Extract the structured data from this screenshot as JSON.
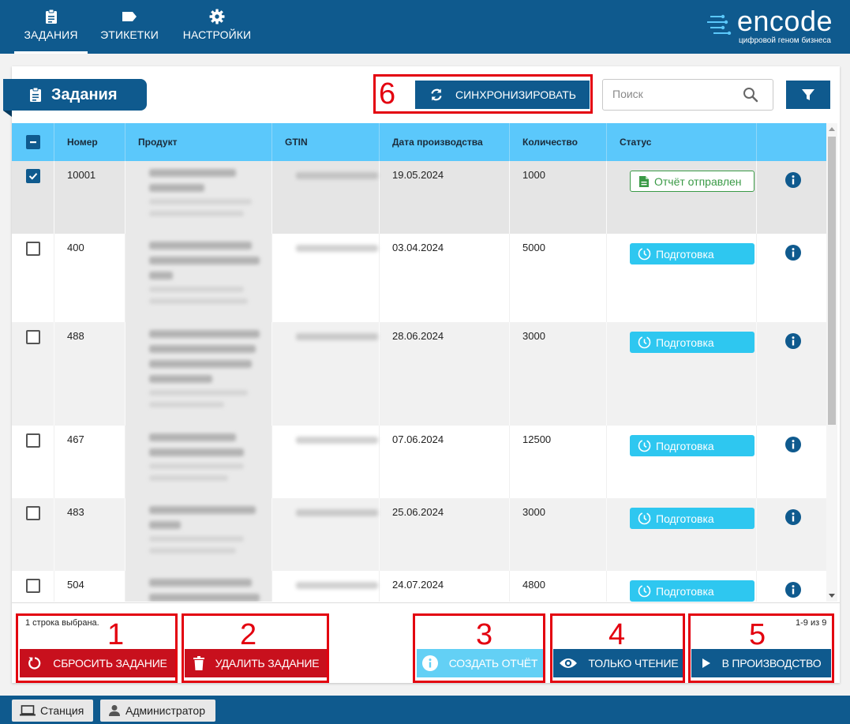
{
  "nav": {
    "items": [
      {
        "label": "ЗАДАНИЯ",
        "icon": "clipboard-icon",
        "active": true
      },
      {
        "label": "ЭТИКЕТКИ",
        "icon": "tag-icon",
        "active": false
      },
      {
        "label": "НАСТРОЙКИ",
        "icon": "gear-icon",
        "active": false
      }
    ],
    "brand": {
      "name": "encode",
      "tagline": "цифровой геном бизнеса"
    }
  },
  "page": {
    "title": "Задания"
  },
  "toolbar": {
    "sync_label": "СИНХРОНИЗИРОВАТЬ",
    "search_placeholder": "Поиск",
    "search_value": ""
  },
  "table": {
    "headers": [
      "Номер",
      "Продукт",
      "GTIN",
      "Дата производства",
      "Количество",
      "Статус"
    ],
    "rows": [
      {
        "number": "10001",
        "date": "19.05.2024",
        "quantity": "1000",
        "status": "Отчёт отправлен",
        "status_type": "sent",
        "checked": true
      },
      {
        "number": "400",
        "date": "03.04.2024",
        "quantity": "5000",
        "status": "Подготовка",
        "status_type": "prep",
        "checked": false
      },
      {
        "number": "488",
        "date": "28.06.2024",
        "quantity": "3000",
        "status": "Подготовка",
        "status_type": "prep",
        "checked": false
      },
      {
        "number": "467",
        "date": "07.06.2024",
        "quantity": "12500",
        "status": "Подготовка",
        "status_type": "prep",
        "checked": false
      },
      {
        "number": "483",
        "date": "25.06.2024",
        "quantity": "3000",
        "status": "Подготовка",
        "status_type": "prep",
        "checked": false
      },
      {
        "number": "504",
        "date": "24.07.2024",
        "quantity": "4800",
        "status": "Подготовка",
        "status_type": "prep",
        "checked": false
      }
    ]
  },
  "footer": {
    "selection_text": "1 строка выбрана.",
    "pagination_text": "1-9 из 9",
    "reset_label": "СБРОСИТЬ ЗАДАНИЕ",
    "delete_label": "УДАЛИТЬ ЗАДАНИЕ",
    "report_label": "СОЗДАТЬ ОТЧЁТ",
    "readonly_label": "ТОЛЬКО ЧТЕНИЕ",
    "production_label": "В ПРОИЗВОДСТВО"
  },
  "annotations": [
    "1",
    "2",
    "3",
    "4",
    "5",
    "6"
  ],
  "statusbar": {
    "station_label": "Станция",
    "admin_label": "Администратор"
  },
  "colors": {
    "primary": "#0f5a8e",
    "header": "#5bc8fb",
    "danger": "#c8101d",
    "prep": "#2ec7f0",
    "sent": "#3a9a46",
    "annotation": "#e3000f"
  }
}
